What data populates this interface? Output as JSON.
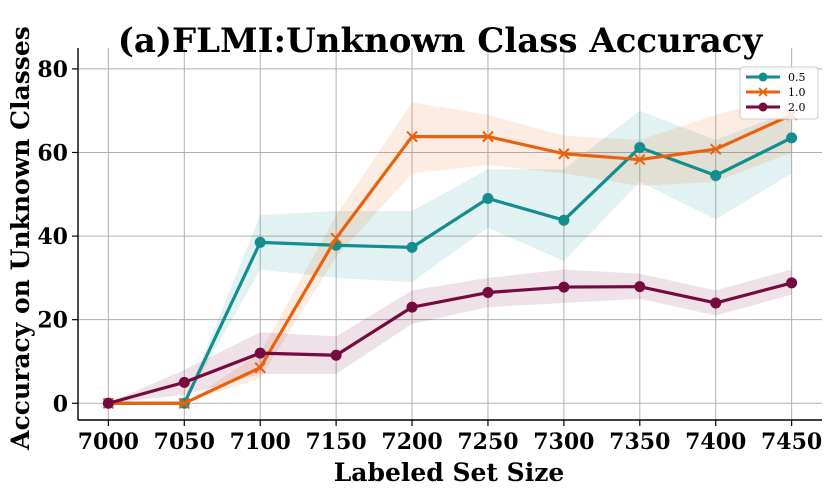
{
  "chart_data": {
    "type": "line",
    "title": "(a)FLMI:Unknown Class Accuracy",
    "xlabel": "Labeled Set Size",
    "ylabel": "Accuracy on Unknown Classes",
    "x": [
      7000,
      7050,
      7100,
      7150,
      7200,
      7250,
      7300,
      7350,
      7400,
      7450
    ],
    "x_ticks": [
      "7000",
      "7050",
      "7100",
      "7150",
      "7200",
      "7250",
      "7300",
      "7350",
      "7400",
      "7450"
    ],
    "y_ticks": [
      "0",
      "20",
      "40",
      "60",
      "80"
    ],
    "xlim": [
      6980,
      7470
    ],
    "ylim": [
      -4,
      85
    ],
    "grid": true,
    "legend_position": "top-right",
    "series": [
      {
        "name": "0.5",
        "color": "#128e8e",
        "marker": "circle",
        "values": [
          0,
          0,
          38.5,
          37.8,
          37.3,
          49,
          43.8,
          61.2,
          54.5,
          63.5
        ],
        "lower": [
          0,
          0,
          32,
          30,
          29,
          42,
          34,
          53,
          44,
          55
        ],
        "upper": [
          0,
          0,
          45,
          46,
          46,
          56,
          56,
          70,
          63,
          70
        ]
      },
      {
        "name": "1.0",
        "color": "#e8620e",
        "marker": "x",
        "values": [
          0,
          0,
          8.5,
          39.5,
          63.8,
          63.8,
          59.7,
          58.3,
          60.8,
          69
        ],
        "lower": [
          0,
          0,
          6,
          35,
          55,
          57,
          55,
          52,
          53,
          60
        ],
        "upper": [
          0,
          0,
          12,
          45,
          72,
          69,
          64,
          63,
          69,
          74
        ]
      },
      {
        "name": "2.0",
        "color": "#760a3f",
        "marker": "circle",
        "values": [
          0,
          5,
          12,
          11.5,
          23,
          26.5,
          27.8,
          27.9,
          24,
          28.8
        ],
        "lower": [
          0,
          2,
          7,
          7,
          19,
          23,
          24,
          25,
          21,
          26
        ],
        "upper": [
          0,
          8,
          17,
          16,
          27,
          30,
          32,
          31,
          27,
          32
        ]
      }
    ]
  }
}
